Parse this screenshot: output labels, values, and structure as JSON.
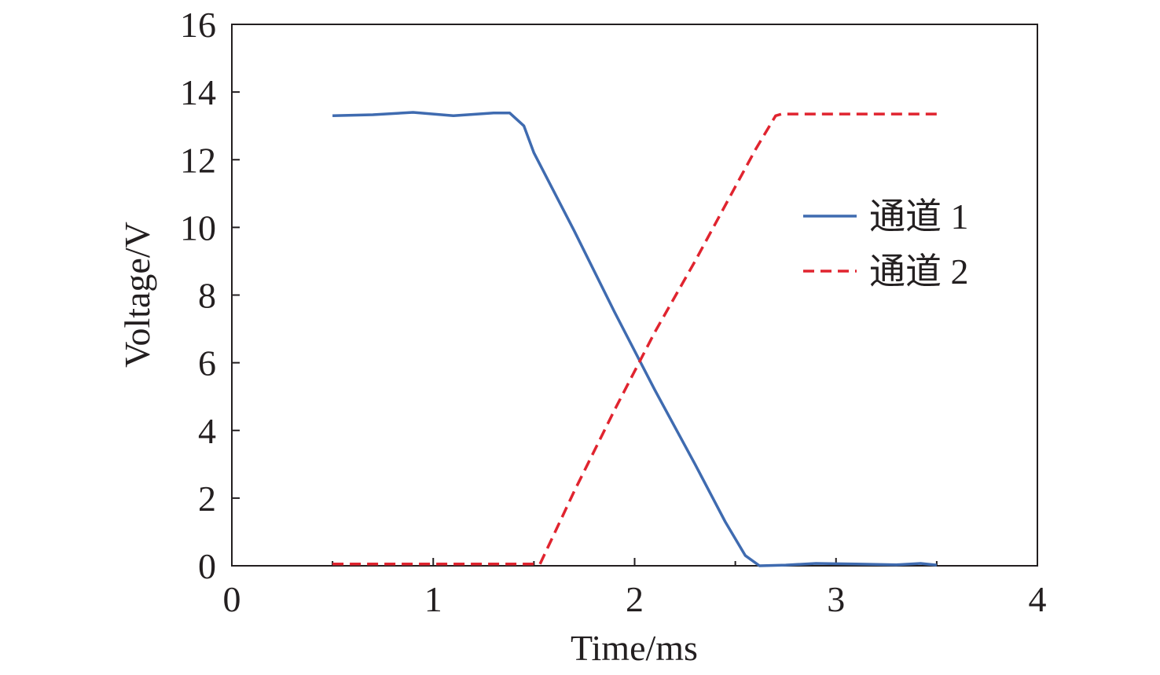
{
  "chart_data": {
    "type": "line",
    "xlabel": "Time/ms",
    "ylabel": "Voltage/V",
    "xlim": [
      0,
      4
    ],
    "ylim": [
      0,
      16
    ],
    "xticks": [
      0,
      1,
      2,
      3,
      4
    ],
    "yticks": [
      0,
      2,
      4,
      6,
      8,
      10,
      12,
      14,
      16
    ],
    "grid": false,
    "legend_position": "right",
    "series": [
      {
        "name": "通道 1",
        "color": "#3f6bb0",
        "dash": "solid",
        "x": [
          0.5,
          0.7,
          0.9,
          1.1,
          1.3,
          1.38,
          1.45,
          1.5,
          1.7,
          1.9,
          2.1,
          2.3,
          2.45,
          2.55,
          2.62,
          2.75,
          2.9,
          3.1,
          3.3,
          3.42,
          3.5
        ],
        "y": [
          13.3,
          13.33,
          13.4,
          13.3,
          13.38,
          13.38,
          13.0,
          12.2,
          9.9,
          7.5,
          5.2,
          3.0,
          1.3,
          0.3,
          0.0,
          0.02,
          0.07,
          0.05,
          0.03,
          0.07,
          0.02
        ]
      },
      {
        "name": "通道 2",
        "color": "#e0242f",
        "dash": "dashed",
        "x": [
          0.5,
          1.0,
          1.5,
          1.53,
          1.7,
          1.9,
          2.1,
          2.3,
          2.5,
          2.6,
          2.7,
          2.73,
          3.0,
          3.5
        ],
        "y": [
          0.05,
          0.05,
          0.05,
          0.05,
          2.2,
          4.6,
          6.9,
          9.0,
          11.2,
          12.3,
          13.3,
          13.35,
          13.35,
          13.35
        ]
      }
    ]
  }
}
